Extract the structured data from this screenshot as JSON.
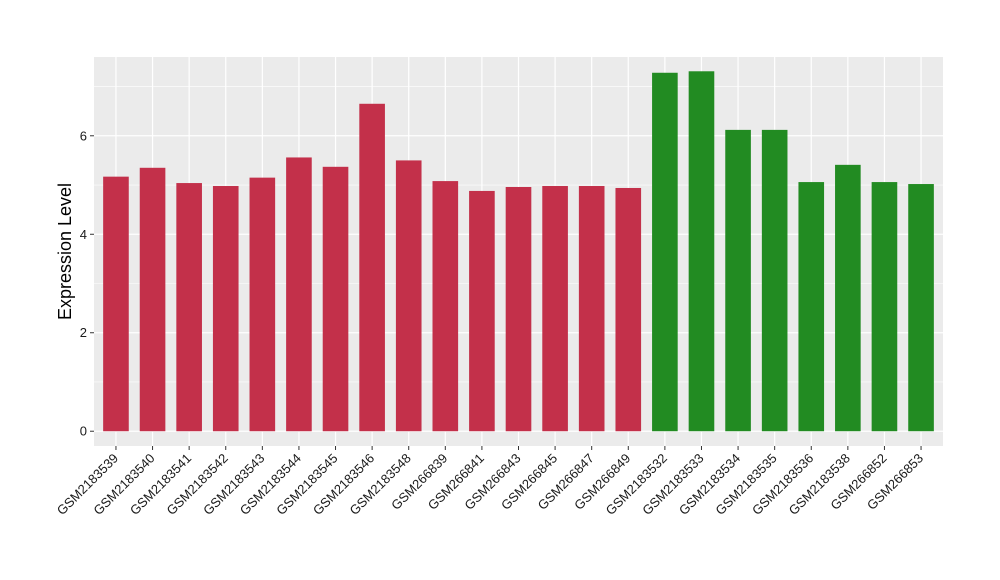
{
  "chart_data": {
    "type": "bar",
    "title": "",
    "xlabel": "",
    "ylabel": "Expression Level",
    "ylim": [
      -0.3,
      7.6
    ],
    "yticks": [
      0,
      2,
      4,
      6
    ],
    "grid": true,
    "legend": "none",
    "colors": {
      "group_a": "#C3304A",
      "group_b": "#228B22",
      "panel": "#EBEBEB",
      "grid": "#FFFFFF"
    },
    "categories": [
      "GSM2183539",
      "GSM2183540",
      "GSM2183541",
      "GSM2183542",
      "GSM2183543",
      "GSM2183544",
      "GSM2183545",
      "GSM2183546",
      "GSM2183548",
      "GSM266839",
      "GSM266841",
      "GSM266843",
      "GSM266845",
      "GSM266847",
      "GSM266849",
      "GSM2183532",
      "GSM2183533",
      "GSM2183534",
      "GSM2183535",
      "GSM2183536",
      "GSM2183538",
      "GSM266852",
      "GSM266853"
    ],
    "values": [
      5.17,
      5.35,
      5.04,
      4.98,
      5.15,
      5.56,
      5.37,
      6.65,
      5.5,
      5.08,
      4.88,
      4.96,
      4.98,
      4.98,
      4.94,
      7.28,
      7.31,
      6.12,
      6.12,
      5.06,
      5.41,
      5.06,
      5.02
    ],
    "groups": [
      "a",
      "a",
      "a",
      "a",
      "a",
      "a",
      "a",
      "a",
      "a",
      "a",
      "a",
      "a",
      "a",
      "a",
      "a",
      "b",
      "b",
      "b",
      "b",
      "b",
      "b",
      "b",
      "b"
    ]
  }
}
